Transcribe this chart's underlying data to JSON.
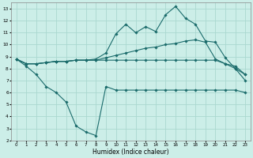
{
  "xlabel": "Humidex (Indice chaleur)",
  "xlim": [
    -0.5,
    23.5
  ],
  "ylim": [
    2,
    13.5
  ],
  "yticks": [
    2,
    3,
    4,
    5,
    6,
    7,
    8,
    9,
    10,
    11,
    12,
    13
  ],
  "xticks": [
    0,
    1,
    2,
    3,
    4,
    5,
    6,
    7,
    8,
    9,
    10,
    11,
    12,
    13,
    14,
    15,
    16,
    17,
    18,
    19,
    20,
    21,
    22,
    23
  ],
  "bg_color": "#cceee8",
  "grid_color": "#aad8d0",
  "line_color": "#1a6b6b",
  "line_width": 0.8,
  "marker": "D",
  "marker_size": 1.8,
  "series": [
    {
      "x": [
        0,
        1,
        2,
        3,
        4,
        5,
        6,
        7,
        8,
        9,
        10,
        11,
        12,
        13,
        14,
        15,
        16,
        17,
        18,
        19,
        20,
        21,
        22,
        23
      ],
      "y": [
        8.8,
        8.4,
        8.4,
        8.5,
        8.6,
        8.6,
        8.7,
        8.7,
        8.8,
        9.3,
        10.9,
        11.7,
        11.0,
        11.5,
        11.1,
        12.5,
        13.2,
        12.2,
        11.7,
        10.3,
        10.2,
        8.9,
        8.0,
        7.0
      ]
    },
    {
      "x": [
        0,
        1,
        2,
        3,
        4,
        5,
        6,
        7,
        8,
        9,
        10,
        11,
        12,
        13,
        14,
        15,
        16,
        17,
        18,
        19,
        20,
        21,
        22,
        23
      ],
      "y": [
        8.8,
        8.4,
        8.4,
        8.5,
        8.6,
        8.6,
        8.7,
        8.7,
        8.7,
        8.9,
        9.1,
        9.3,
        9.5,
        9.7,
        9.8,
        10.0,
        10.1,
        10.3,
        10.4,
        10.2,
        8.8,
        8.4,
        8.0,
        7.5
      ]
    },
    {
      "x": [
        0,
        1,
        2,
        3,
        4,
        5,
        6,
        7,
        8,
        9,
        10,
        11,
        12,
        13,
        14,
        15,
        16,
        17,
        18,
        19,
        20,
        21,
        22,
        23
      ],
      "y": [
        8.8,
        8.4,
        8.4,
        8.5,
        8.6,
        8.6,
        8.7,
        8.7,
        8.7,
        8.7,
        8.7,
        8.7,
        8.7,
        8.7,
        8.7,
        8.7,
        8.7,
        8.7,
        8.7,
        8.7,
        8.7,
        8.4,
        8.2,
        7.5
      ]
    },
    {
      "x": [
        0,
        1,
        2,
        3,
        4,
        5,
        6,
        7,
        8,
        9,
        10,
        11,
        12,
        13,
        14,
        15,
        16,
        17,
        18,
        19,
        20,
        21,
        22,
        23
      ],
      "y": [
        8.8,
        8.2,
        7.5,
        6.5,
        6.0,
        5.2,
        3.2,
        2.7,
        2.4,
        6.5,
        6.2,
        6.2,
        6.2,
        6.2,
        6.2,
        6.2,
        6.2,
        6.2,
        6.2,
        6.2,
        6.2,
        6.2,
        6.2,
        6.0
      ]
    }
  ]
}
